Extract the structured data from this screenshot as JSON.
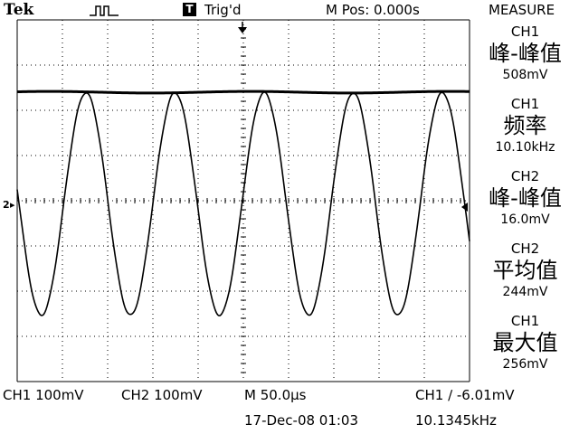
{
  "header": {
    "brand": "Tek",
    "trigger_mode_icon": "T",
    "trigger_status": "Trig'd",
    "m_pos": "M Pos: 0.000s",
    "menu_title": "MEASURE"
  },
  "markers": {
    "ch_ground": "2",
    "trigger_pos_icon": "arrow-down-icon",
    "trigger_level_icon": "arrow-left-icon"
  },
  "measurements": [
    {
      "source": "CH1",
      "label": "峰-峰值",
      "value": "508mV"
    },
    {
      "source": "CH1",
      "label": "频率",
      "value": "10.10kHz"
    },
    {
      "source": "CH2",
      "label": "峰-峰值",
      "value": "16.0mV"
    },
    {
      "source": "CH2",
      "label": "平均值",
      "value": "244mV"
    },
    {
      "source": "CH1",
      "label": "最大值",
      "value": "256mV"
    }
  ],
  "status": {
    "ch1_scale": "CH1  100mV",
    "ch2_scale": "CH2  100mV",
    "timebase": "M 50.0µs",
    "trigger": "CH1  ∕  -6.01mV",
    "date": "17-Dec-08 01:03",
    "trigger_freq": "10.1345kHz"
  },
  "colors": {
    "trace": "#000000",
    "grid": "#000000",
    "background": "#ffffff"
  }
}
